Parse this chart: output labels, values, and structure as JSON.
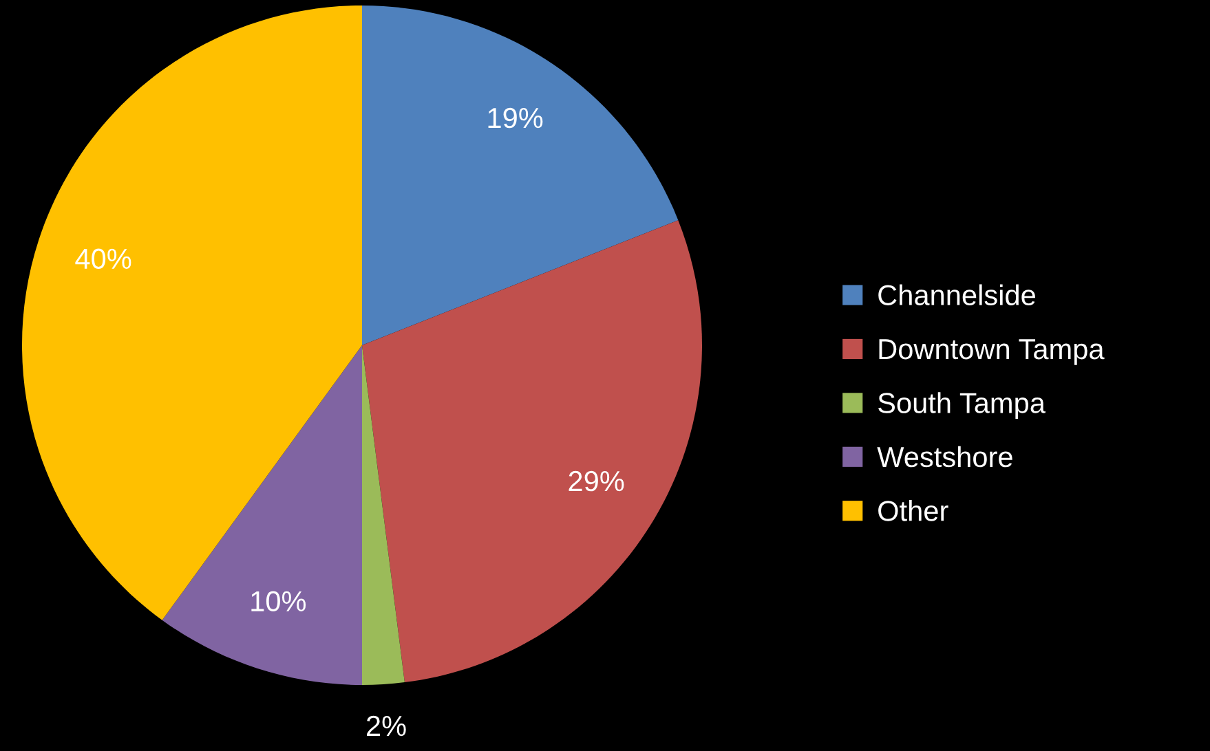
{
  "chart_data": {
    "type": "pie",
    "categories": [
      "Channelside",
      "Downtown Tampa",
      "South Tampa",
      "Westshore",
      "Other"
    ],
    "values": [
      19,
      29,
      2,
      10,
      40
    ],
    "colors": [
      "#4f81bd",
      "#c0504d",
      "#9bbb59",
      "#8064a2",
      "#ffc000"
    ],
    "value_labels": [
      "19%",
      "29%",
      "2%",
      "10%",
      "40%"
    ],
    "legend": "right"
  }
}
